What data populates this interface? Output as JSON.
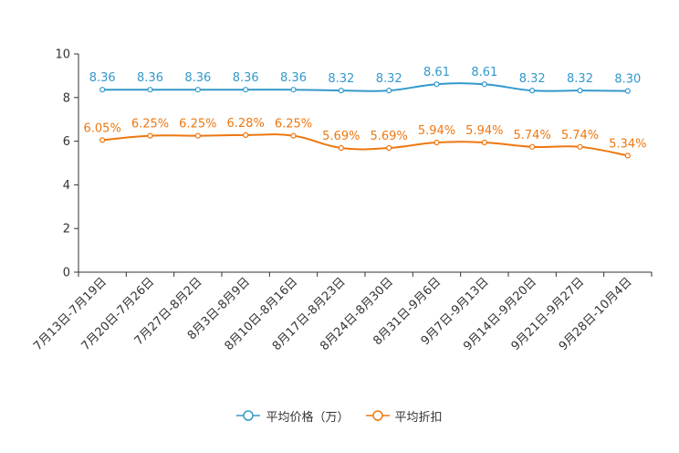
{
  "chart_data": {
    "type": "line",
    "title": "",
    "xlabel": "",
    "ylabel": "",
    "ylim": [
      0,
      10
    ],
    "yticks": [
      0,
      2,
      4,
      6,
      8,
      10
    ],
    "categories": [
      "7月13日-7月19日",
      "7月20日-7月26日",
      "7月27日-8月2日",
      "8月3日-8月9日",
      "8月10日-8月16日",
      "8月17日-8月23日",
      "8月24日-8月30日",
      "8月31日-9月6日",
      "9月7日-9月13日",
      "9月14日-9月20日",
      "9月21日-9月27日",
      "9月28日-10月4日"
    ],
    "series": [
      {
        "name": "平均价格（万）",
        "color": "#3399cc",
        "values": [
          8.36,
          8.36,
          8.36,
          8.36,
          8.36,
          8.32,
          8.32,
          8.61,
          8.61,
          8.32,
          8.32,
          8.3
        ],
        "labels": [
          "8.36",
          "8.36",
          "8.36",
          "8.36",
          "8.36",
          "8.32",
          "8.32",
          "8.61",
          "8.61",
          "8.32",
          "8.32",
          "8.30"
        ]
      },
      {
        "name": "平均折扣",
        "color": "#ee7711",
        "values": [
          6.05,
          6.25,
          6.25,
          6.28,
          6.25,
          5.69,
          5.69,
          5.94,
          5.94,
          5.74,
          5.74,
          5.34
        ],
        "labels": [
          "6.05%",
          "6.25%",
          "6.25%",
          "6.28%",
          "6.25%",
          "5.69%",
          "5.69%",
          "5.94%",
          "5.94%",
          "5.74%",
          "5.74%",
          "5.34%"
        ]
      }
    ],
    "legend_position": "bottom"
  }
}
